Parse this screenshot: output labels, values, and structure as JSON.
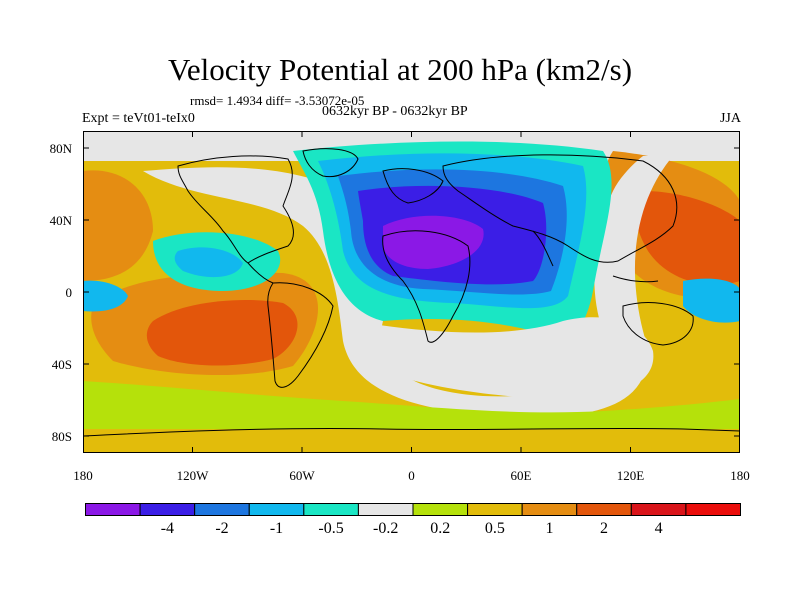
{
  "header": {
    "title": "Velocity Potential at 200 hPa (km2/s)",
    "stats": "rmsd= 1.4934 diff= -3.53072e-05",
    "experiment": "Expt = teVt01-teIx0",
    "period": "0632kyr BP - 0632kyr BP",
    "season": "JJA"
  },
  "map": {
    "projection": "cylindrical equidistant",
    "lon_range": [
      -180,
      180
    ],
    "lat_range": [
      -90,
      90
    ],
    "lat_ticks": [
      "80N",
      "40N",
      "0",
      "40S",
      "80S"
    ],
    "lon_ticks": [
      "180",
      "120W",
      "60W",
      "0",
      "60E",
      "120E",
      "180"
    ],
    "background_level": "0.2 to 0.5",
    "regions": [
      {
        "name": "south-pacific-max",
        "lon": -125,
        "lat": -20,
        "level": "2 to 4"
      },
      {
        "name": "west-pacific-max",
        "lon": 140,
        "lat": 20,
        "level": "2 to 4"
      },
      {
        "name": "north-africa-min",
        "lon": 20,
        "lat": 25,
        "level": "-4 and below"
      },
      {
        "name": "eurasia-low",
        "lon": 30,
        "lat": 30,
        "level": "-2 to -1"
      },
      {
        "name": "east-pacific-low",
        "lon": -130,
        "lat": 10,
        "level": "-1 to -0.5"
      },
      {
        "name": "western-pacific-low",
        "lon": 165,
        "lat": 0,
        "level": "-1 to -0.5"
      },
      {
        "name": "southern-ocean-neutral",
        "lon": 40,
        "lat": -50,
        "level": "-0.2 to 0.2"
      }
    ]
  },
  "colorbar": {
    "colors": [
      "#8b18e6",
      "#3b1ee6",
      "#1d76e0",
      "#11b8ee",
      "#1ae6c4",
      "#e6e6e6",
      "#b5e10b",
      "#e2bc0b",
      "#e58d12",
      "#e3560b",
      "#d9141a",
      "#ea0d0b"
    ],
    "labels": [
      "-4",
      "-2",
      "-1",
      "-0.5",
      "-0.2",
      "0.2",
      "0.5",
      "1",
      "2",
      "4"
    ]
  }
}
